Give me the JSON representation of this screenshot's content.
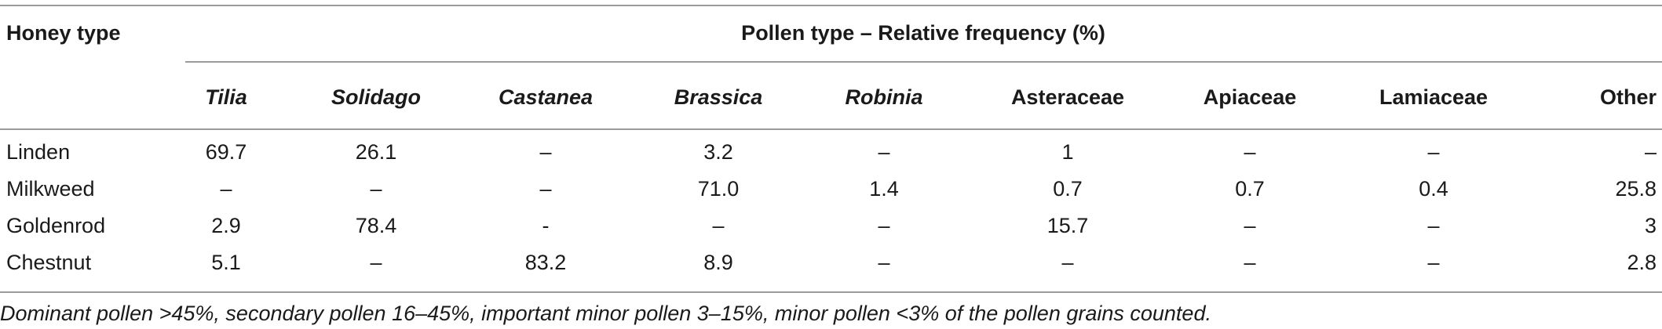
{
  "table": {
    "row_header_label": "Honey type",
    "group_header_label": "Pollen type – Relative frequency (%)",
    "columns": [
      {
        "label": "Tilia",
        "italic": true
      },
      {
        "label": "Solidago",
        "italic": true
      },
      {
        "label": "Castanea",
        "italic": true
      },
      {
        "label": "Brassica",
        "italic": true
      },
      {
        "label": "Robinia",
        "italic": true
      },
      {
        "label": "Asteraceae",
        "italic": false
      },
      {
        "label": "Apiaceae",
        "italic": false
      },
      {
        "label": "Lamiaceae",
        "italic": false
      },
      {
        "label": "Other",
        "italic": false
      }
    ],
    "rows": [
      {
        "honey_type": "Linden",
        "values": [
          "69.7",
          "26.1",
          "–",
          "3.2",
          "–",
          "1",
          "–",
          "–",
          "–"
        ]
      },
      {
        "honey_type": "Milkweed",
        "values": [
          "–",
          "–",
          "–",
          "71.0",
          "1.4",
          "0.7",
          "0.7",
          "0.4",
          "25.8"
        ]
      },
      {
        "honey_type": "Goldenrod",
        "values": [
          "2.9",
          "78.4",
          "-",
          "–",
          "–",
          "15.7",
          "–",
          "–",
          "3"
        ]
      },
      {
        "honey_type": "Chestnut",
        "values": [
          "5.1",
          "–",
          "83.2",
          "8.9",
          "–",
          "–",
          "–",
          "–",
          "2.8"
        ]
      }
    ],
    "footnote": "Dominant pollen >45%, secondary pollen 16–45%, important minor pollen 3–15%, minor pollen <3% of the pollen grains counted."
  }
}
